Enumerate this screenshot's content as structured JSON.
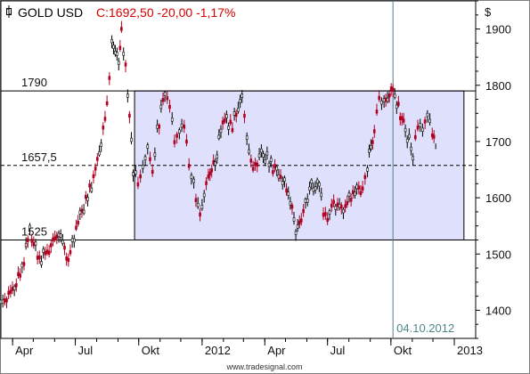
{
  "chart_data": {
    "type": "ohlc",
    "title": "GOLD USD",
    "quote": "C:1692,50 -20,00 -1,17%",
    "currency_symbol": "$",
    "y_ticks": [
      1400,
      1500,
      1600,
      1700,
      1800,
      1900
    ],
    "ylim": [
      1350,
      1950
    ],
    "x_ticks": [
      "Apr",
      "Jul",
      "Okt",
      "2012",
      "Apr",
      "Jul",
      "Okt",
      "2013"
    ],
    "x_tick_dates": [
      "2011-04-01",
      "2011-07-01",
      "2011-10-01",
      "2012-01-01",
      "2012-04-01",
      "2012-07-01",
      "2012-10-01",
      "2013-01-01"
    ],
    "xlim": [
      "2011-03-15",
      "2013-02-01"
    ],
    "levels": [
      {
        "label": "1790",
        "value": 1790,
        "style": "solid"
      },
      {
        "label": "1657,5",
        "value": 1657.5,
        "style": "dashed"
      },
      {
        "label": "1525",
        "value": 1525,
        "style": "solid"
      }
    ],
    "range_box": {
      "start": "2011-09-25",
      "end": "2013-01-15",
      "top": 1790,
      "bottom": 1525
    },
    "crosshair": {
      "date": "2012-10-04",
      "label": "04.10.2012"
    },
    "series": [
      {
        "values": [
          [
            "2011-03-15",
            1410
          ],
          [
            "2011-03-29",
            1430
          ],
          [
            "2011-04-12",
            1460
          ],
          [
            "2011-04-26",
            1540
          ],
          [
            "2011-05-10",
            1490
          ],
          [
            "2011-05-24",
            1510
          ],
          [
            "2011-06-07",
            1540
          ],
          [
            "2011-06-21",
            1490
          ],
          [
            "2011-07-05",
            1560
          ],
          [
            "2011-07-19",
            1600
          ],
          [
            "2011-08-02",
            1660
          ],
          [
            "2011-08-16",
            1760
          ],
          [
            "2011-08-23",
            1880
          ],
          [
            "2011-09-02",
            1840
          ],
          [
            "2011-09-06",
            1900
          ],
          [
            "2011-09-15",
            1790
          ],
          [
            "2011-09-23",
            1650
          ],
          [
            "2011-09-30",
            1620
          ],
          [
            "2011-10-07",
            1650
          ],
          [
            "2011-10-14",
            1690
          ],
          [
            "2011-10-21",
            1640
          ],
          [
            "2011-10-28",
            1720
          ],
          [
            "2011-11-08",
            1790
          ],
          [
            "2011-11-15",
            1770
          ],
          [
            "2011-11-22",
            1700
          ],
          [
            "2011-11-29",
            1720
          ],
          [
            "2011-12-06",
            1730
          ],
          [
            "2011-12-13",
            1650
          ],
          [
            "2011-12-20",
            1620
          ],
          [
            "2011-12-29",
            1570
          ],
          [
            "2012-01-10",
            1640
          ],
          [
            "2012-01-20",
            1660
          ],
          [
            "2012-01-31",
            1740
          ],
          [
            "2012-02-14",
            1730
          ],
          [
            "2012-02-28",
            1780
          ],
          [
            "2012-03-06",
            1700
          ],
          [
            "2012-03-15",
            1650
          ],
          [
            "2012-03-27",
            1680
          ],
          [
            "2012-04-10",
            1660
          ],
          [
            "2012-04-24",
            1640
          ],
          [
            "2012-05-08",
            1600
          ],
          [
            "2012-05-16",
            1540
          ],
          [
            "2012-05-24",
            1560
          ],
          [
            "2012-06-05",
            1620
          ],
          [
            "2012-06-19",
            1620
          ],
          [
            "2012-06-28",
            1560
          ],
          [
            "2012-07-10",
            1590
          ],
          [
            "2012-07-24",
            1580
          ],
          [
            "2012-08-07",
            1610
          ],
          [
            "2012-08-21",
            1620
          ],
          [
            "2012-08-28",
            1660
          ],
          [
            "2012-09-07",
            1720
          ],
          [
            "2012-09-14",
            1770
          ],
          [
            "2012-09-21",
            1770
          ],
          [
            "2012-10-04",
            1790
          ],
          [
            "2012-10-12",
            1760
          ],
          [
            "2012-10-22",
            1720
          ],
          [
            "2012-11-02",
            1680
          ],
          [
            "2012-11-09",
            1730
          ],
          [
            "2012-11-16",
            1720
          ],
          [
            "2012-11-23",
            1750
          ],
          [
            "2012-11-30",
            1710
          ],
          [
            "2012-12-05",
            1692.5
          ]
        ]
      }
    ],
    "watermark": "www.tradesignal.com",
    "grid": false
  }
}
